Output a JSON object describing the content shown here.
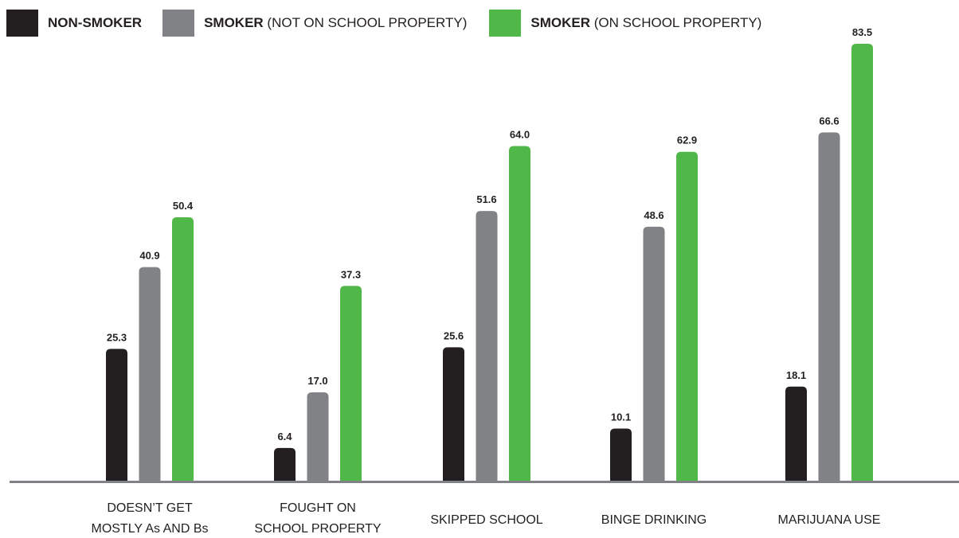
{
  "legend": [
    {
      "bold": "NON-SMOKER",
      "rest": "",
      "color": "#231f20"
    },
    {
      "bold": "SMOKER",
      "rest": " (NOT ON SCHOOL PROPERTY)",
      "color": "#808285"
    },
    {
      "bold": "SMOKER",
      "rest": " (ON SCHOOL PROPERTY)",
      "color": "#50b848"
    }
  ],
  "chart_data": {
    "type": "bar",
    "categories": [
      [
        "DOESN’T GET",
        "MOSTLY As AND Bs"
      ],
      [
        "FOUGHT ON",
        "SCHOOL PROPERTY"
      ],
      [
        "SKIPPED SCHOOL"
      ],
      [
        "BINGE DRINKING"
      ],
      [
        "MARIJUANA USE"
      ]
    ],
    "series": [
      {
        "name": "NON-SMOKER",
        "color": "#231f20",
        "values": [
          25.3,
          6.4,
          25.6,
          10.1,
          18.1
        ]
      },
      {
        "name": "SMOKER (NOT ON SCHOOL PROPERTY)",
        "color": "#808285",
        "values": [
          40.9,
          17.0,
          51.6,
          48.6,
          66.6
        ]
      },
      {
        "name": "SMOKER (ON SCHOOL PROPERTY)",
        "color": "#50b848",
        "values": [
          50.4,
          37.3,
          64.0,
          62.9,
          83.5
        ]
      }
    ],
    "data_labels": [
      [
        "25.3",
        "6.4",
        "25.6",
        "10.1",
        "18.1"
      ],
      [
        "40.9",
        "17.0",
        "51.6",
        "48.6",
        "66.6"
      ],
      [
        "50.4",
        "37.3",
        "64.0",
        "62.9",
        "83.5"
      ]
    ],
    "ylim": [
      0,
      83.5
    ],
    "grid": false,
    "legend_position": "top-left",
    "baseline_color": "#808285"
  }
}
